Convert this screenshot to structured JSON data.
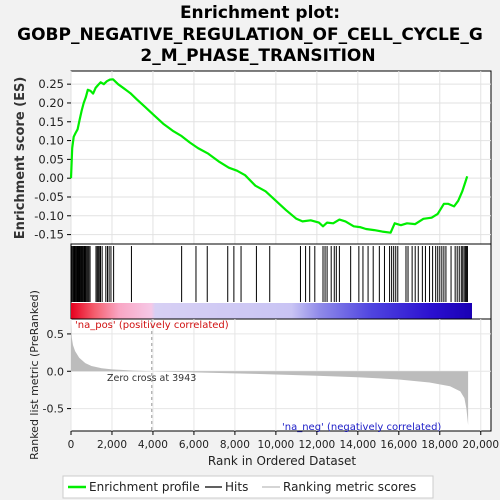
{
  "chart_data": {
    "type": "line",
    "title_lines": [
      "Enrichment plot:",
      "GOBP_NEGATIVE_REGULATION_OF_CELL_CYCLE_G",
      "2_M_PHASE_TRANSITION"
    ],
    "es_panel": {
      "ylabel": "Enrichment score (ES)",
      "ylim": [
        -0.175,
        0.285
      ],
      "yticks": [
        "0.25",
        "0.20",
        "0.15",
        "0.10",
        "0.05",
        "0.00",
        "-0.05",
        "-0.10",
        "-0.15"
      ],
      "ytick_values": [
        0.25,
        0.2,
        0.15,
        0.1,
        0.05,
        0.0,
        -0.05,
        -0.1,
        -0.15
      ],
      "series_name": "Enrichment profile",
      "color": "#00ee00",
      "points": [
        [
          0,
          0.0
        ],
        [
          60,
          0.08
        ],
        [
          130,
          0.11
        ],
        [
          220,
          0.12
        ],
        [
          320,
          0.13
        ],
        [
          420,
          0.155
        ],
        [
          520,
          0.18
        ],
        [
          620,
          0.2
        ],
        [
          720,
          0.215
        ],
        [
          820,
          0.235
        ],
        [
          950,
          0.232
        ],
        [
          1080,
          0.225
        ],
        [
          1200,
          0.24
        ],
        [
          1330,
          0.248
        ],
        [
          1450,
          0.255
        ],
        [
          1600,
          0.25
        ],
        [
          1750,
          0.258
        ],
        [
          1900,
          0.262
        ],
        [
          2050,
          0.263
        ],
        [
          2300,
          0.25
        ],
        [
          2600,
          0.238
        ],
        [
          2900,
          0.226
        ],
        [
          3200,
          0.21
        ],
        [
          3600,
          0.19
        ],
        [
          4000,
          0.17
        ],
        [
          4500,
          0.145
        ],
        [
          5000,
          0.125
        ],
        [
          5400,
          0.112
        ],
        [
          5800,
          0.095
        ],
        [
          6200,
          0.08
        ],
        [
          6700,
          0.065
        ],
        [
          7200,
          0.045
        ],
        [
          7700,
          0.028
        ],
        [
          8100,
          0.02
        ],
        [
          8500,
          0.008
        ],
        [
          9000,
          -0.02
        ],
        [
          9500,
          -0.035
        ],
        [
          10000,
          -0.06
        ],
        [
          10500,
          -0.085
        ],
        [
          11000,
          -0.108
        ],
        [
          11300,
          -0.115
        ],
        [
          11700,
          -0.112
        ],
        [
          12100,
          -0.118
        ],
        [
          12300,
          -0.128
        ],
        [
          12500,
          -0.118
        ],
        [
          12800,
          -0.12
        ],
        [
          13100,
          -0.11
        ],
        [
          13400,
          -0.115
        ],
        [
          13800,
          -0.128
        ],
        [
          14100,
          -0.13
        ],
        [
          14400,
          -0.135
        ],
        [
          14800,
          -0.138
        ],
        [
          15200,
          -0.142
        ],
        [
          15600,
          -0.145
        ],
        [
          15800,
          -0.12
        ],
        [
          16100,
          -0.125
        ],
        [
          16400,
          -0.12
        ],
        [
          16800,
          -0.122
        ],
        [
          17200,
          -0.108
        ],
        [
          17600,
          -0.105
        ],
        [
          17900,
          -0.095
        ],
        [
          18200,
          -0.068
        ],
        [
          18400,
          -0.068
        ],
        [
          18700,
          -0.075
        ],
        [
          18900,
          -0.06
        ],
        [
          19100,
          -0.035
        ],
        [
          19250,
          -0.01
        ],
        [
          19340,
          0.005
        ]
      ]
    },
    "hits_panel": {
      "series_name": "Hits",
      "positions": [
        20,
        60,
        110,
        150,
        190,
        230,
        260,
        300,
        340,
        370,
        400,
        430,
        470,
        510,
        550,
        590,
        640,
        680,
        720,
        770,
        820,
        870,
        930,
        1220,
        1280,
        1330,
        1380,
        1440,
        1520,
        1700,
        1780,
        1860,
        1950,
        2080,
        2950,
        5400,
        6100,
        6650,
        7650,
        7950,
        8300,
        9050,
        9700,
        11200,
        11450,
        11650,
        11900,
        12300,
        12400,
        12500,
        12700,
        12850,
        12950,
        13100,
        13650,
        14050,
        14250,
        14500,
        14750,
        15050,
        15300,
        15550,
        15650,
        15750,
        15850,
        15950,
        16350,
        16450,
        16650,
        16800,
        16950,
        17150,
        17300,
        17500,
        17650,
        17800,
        17900,
        18000,
        18100,
        18200,
        18300,
        18550,
        18750,
        18850,
        18950,
        19050,
        19120,
        19190,
        19250,
        19300,
        19350
      ]
    },
    "ranked_panel": {
      "ylabel": "Ranked list metric (PreRanked)",
      "ylim": [
        -0.8,
        0.7
      ],
      "yticks": [
        "0.5",
        "0.0",
        "-0.5"
      ],
      "ytick_values": [
        0.5,
        0.0,
        -0.5
      ],
      "series_name": "Ranking metric scores",
      "pos_label": "'na_pos' (positively correlated)",
      "neg_label": "'na_neg' (negatively correlated)",
      "zero_cross_label": "Zero cross at 3943",
      "zero_cross": 3943,
      "profile": [
        [
          0,
          0.65
        ],
        [
          40,
          0.45
        ],
        [
          100,
          0.35
        ],
        [
          200,
          0.27
        ],
        [
          400,
          0.18
        ],
        [
          700,
          0.11
        ],
        [
          1000,
          0.07
        ],
        [
          1500,
          0.04
        ],
        [
          2000,
          0.025
        ],
        [
          3000,
          0.01
        ],
        [
          3943,
          0.0
        ],
        [
          6000,
          -0.015
        ],
        [
          9000,
          -0.035
        ],
        [
          12000,
          -0.06
        ],
        [
          14000,
          -0.08
        ],
        [
          16000,
          -0.11
        ],
        [
          17500,
          -0.15
        ],
        [
          18500,
          -0.2
        ],
        [
          19000,
          -0.27
        ],
        [
          19200,
          -0.36
        ],
        [
          19300,
          -0.5
        ],
        [
          19380,
          -0.72
        ]
      ]
    },
    "xaxis": {
      "xlabel": "Rank in Ordered Dataset",
      "xlim": [
        0,
        20500
      ],
      "ticks": [
        "0",
        "2,000",
        "4,000",
        "6,000",
        "8,000",
        "10,000",
        "12,000",
        "14,000",
        "16,000",
        "18,000",
        "20,000"
      ],
      "tick_values": [
        0,
        2000,
        4000,
        6000,
        8000,
        10000,
        12000,
        14000,
        16000,
        18000,
        20000
      ],
      "n_genes": 19380
    },
    "legend": {
      "placement": "bottom",
      "items": [
        "Enrichment profile",
        "Hits",
        "Ranking metric scores"
      ]
    }
  }
}
